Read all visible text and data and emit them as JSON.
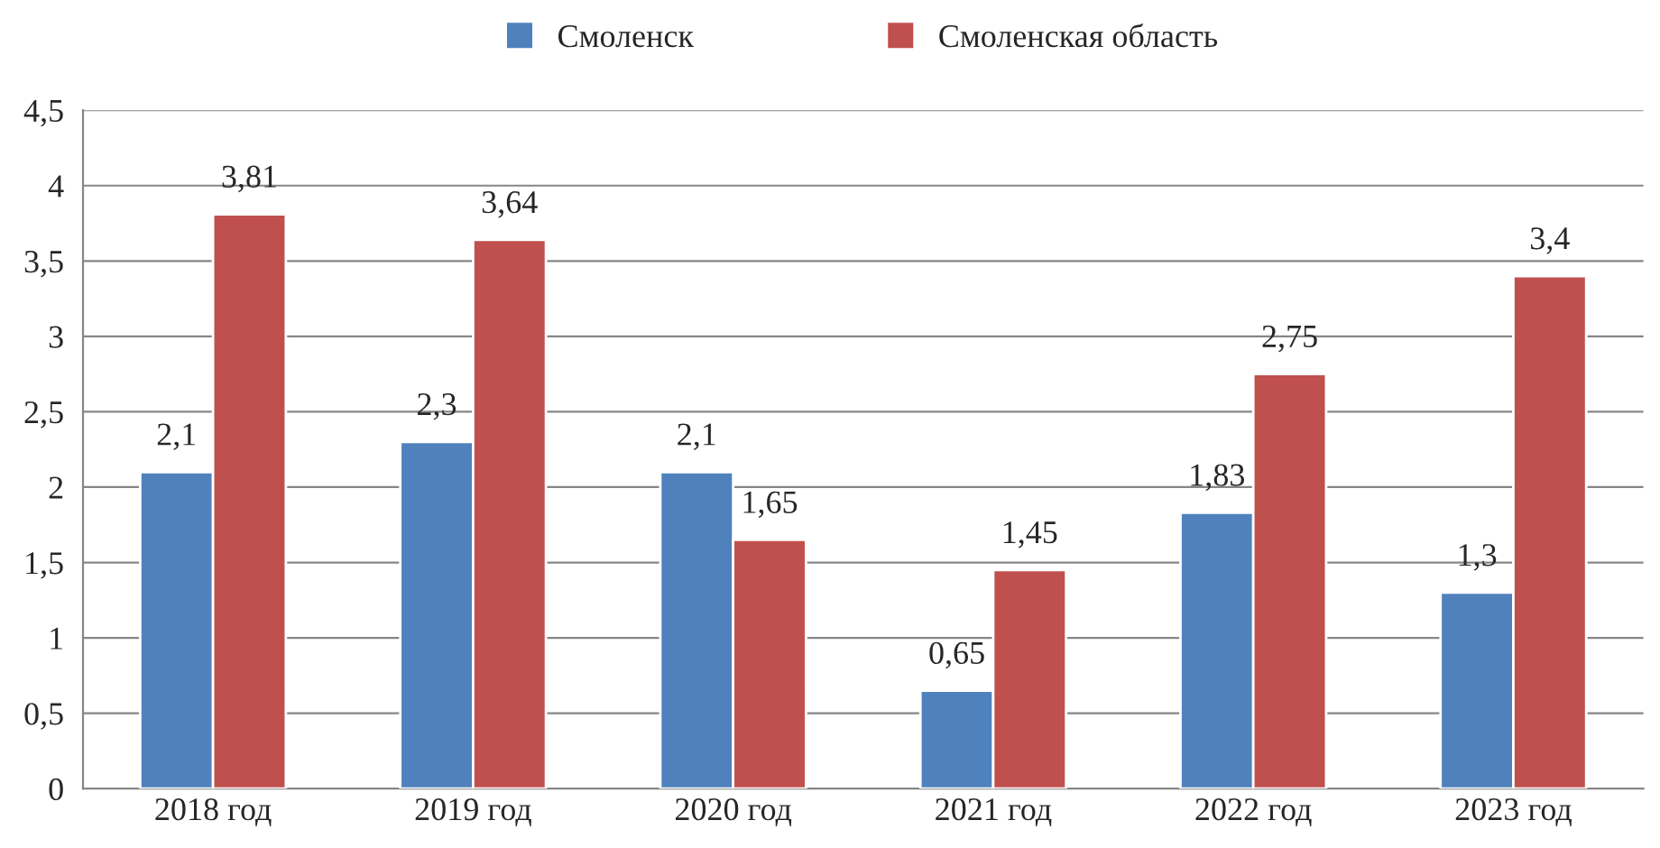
{
  "chart_data": {
    "type": "bar",
    "categories": [
      "2018 год",
      "2019 год",
      "2020 год",
      "2021 год",
      "2022 год",
      "2023 год"
    ],
    "series": [
      {
        "name": "Смоленск",
        "color": "#4f81bd",
        "values": [
          2.1,
          2.3,
          2.1,
          0.65,
          1.83,
          1.3
        ],
        "value_labels": [
          "2,1",
          "2,3",
          "2,1",
          "0,65",
          "1,83",
          "1,3"
        ]
      },
      {
        "name": "Смоленская область",
        "color": "#c0504d",
        "values": [
          3.81,
          3.64,
          1.65,
          1.45,
          2.75,
          3.4
        ],
        "value_labels": [
          "3,81",
          "3,64",
          "1,65",
          "1,45",
          "2,75",
          "3,4"
        ]
      }
    ],
    "ylim": [
      0,
      4.5
    ],
    "yticks": [
      0,
      {
        "value": 0.5,
        "label": "0,5"
      },
      1,
      {
        "value": 1.5,
        "label": "1,5"
      },
      2,
      {
        "value": 2.5,
        "label": "2,5"
      },
      3,
      {
        "value": 3.5,
        "label": "3,5"
      },
      4,
      {
        "value": 4.5,
        "label": "4,5"
      }
    ],
    "grid": "y",
    "legend": "top"
  }
}
